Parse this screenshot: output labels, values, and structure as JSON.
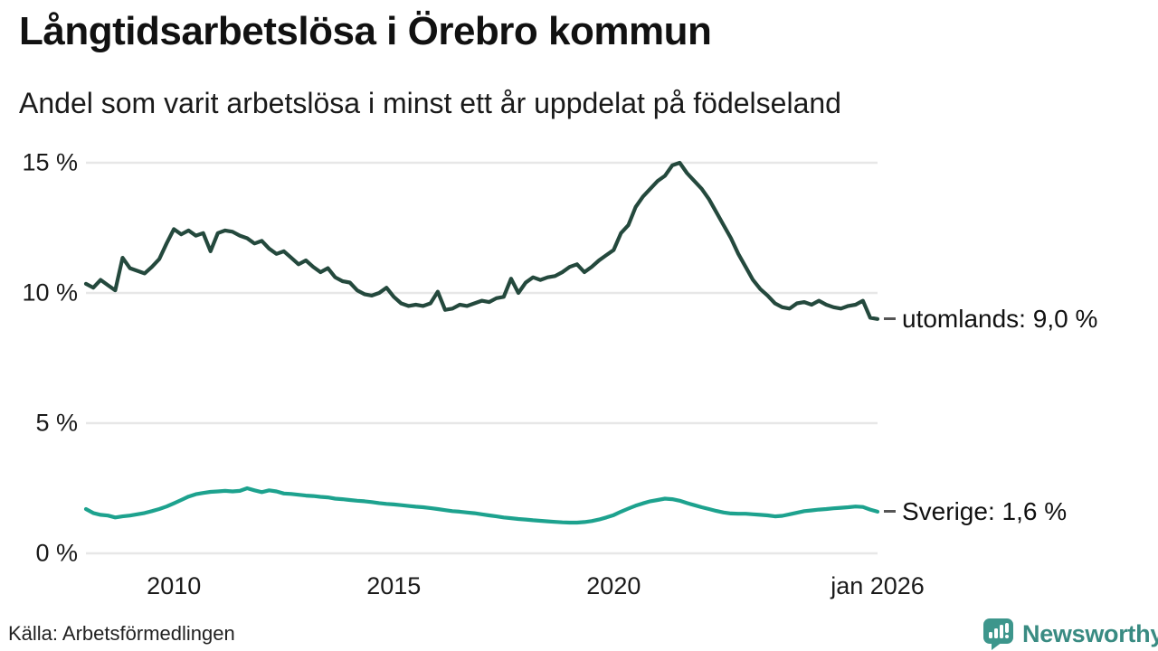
{
  "header": {
    "title": "Långtidsarbetslösa i Örebro kommun",
    "subtitle": "Andel som varit arbetslösa i minst ett år uppdelat på födelseland"
  },
  "footer": {
    "source": "Källa: Arbetsförmedlingen",
    "brand": "Newsworthy"
  },
  "colors": {
    "utomlands_line": "#24493d",
    "sverige_line": "#1da28e",
    "gridline": "#e7e7e7",
    "text": "#1a1a1a",
    "brand_teal": "#398b82",
    "label_dash": "#555555"
  },
  "chart_data": {
    "type": "line",
    "title": "Långtidsarbetslösa i Örebro kommun",
    "subtitle": "Andel som varit arbetslösa i minst ett år uppdelat på födelseland",
    "unit": "%",
    "grid": "horizontal",
    "legend_position": "line-end-labels",
    "x_start": 2008,
    "x_end": 2026,
    "points_per_year": 6,
    "ylim": [
      0,
      15.3
    ],
    "y_ticks": [
      {
        "value": 0,
        "label": "0 %"
      },
      {
        "value": 5,
        "label": "5 %"
      },
      {
        "value": 10,
        "label": "10 %"
      },
      {
        "value": 15,
        "label": "15 %"
      }
    ],
    "x_ticks": [
      {
        "value": 2010,
        "label": "2010"
      },
      {
        "value": 2015,
        "label": "2015"
      },
      {
        "value": 2020,
        "label": "2020"
      },
      {
        "value": 2026,
        "label": "jan 2026"
      }
    ],
    "series": [
      {
        "name": "utomlands",
        "label": "utomlands: 9,0 %",
        "end_value": 9.0,
        "color": "#24493d",
        "values": [
          10.35,
          10.2,
          10.5,
          10.3,
          10.1,
          11.35,
          10.95,
          10.85,
          10.75,
          11.0,
          11.3,
          11.9,
          12.45,
          12.25,
          12.4,
          12.2,
          12.3,
          11.6,
          12.3,
          12.4,
          12.35,
          12.2,
          12.1,
          11.9,
          12.0,
          11.7,
          11.5,
          11.6,
          11.35,
          11.1,
          11.25,
          11.0,
          10.8,
          10.95,
          10.6,
          10.45,
          10.4,
          10.1,
          9.95,
          9.9,
          10.0,
          10.2,
          9.85,
          9.6,
          9.5,
          9.55,
          9.5,
          9.6,
          10.05,
          9.35,
          9.4,
          9.55,
          9.5,
          9.6,
          9.7,
          9.65,
          9.8,
          9.85,
          10.55,
          10.0,
          10.4,
          10.6,
          10.5,
          10.6,
          10.65,
          10.8,
          11.0,
          11.1,
          10.8,
          11.0,
          11.25,
          11.45,
          11.65,
          12.3,
          12.6,
          13.3,
          13.7,
          14.0,
          14.3,
          14.5,
          14.9,
          15.0,
          14.6,
          14.3,
          14.0,
          13.6,
          13.1,
          12.6,
          12.1,
          11.5,
          11.0,
          10.5,
          10.15,
          9.9,
          9.6,
          9.45,
          9.4,
          9.6,
          9.65,
          9.55,
          9.7,
          9.55,
          9.45,
          9.4,
          9.5,
          9.55,
          9.7,
          9.05,
          9.0
        ]
      },
      {
        "name": "Sverige",
        "label": "Sverige: 1,6 %",
        "end_value": 1.6,
        "color": "#1da28e",
        "values": [
          1.7,
          1.55,
          1.48,
          1.45,
          1.38,
          1.42,
          1.45,
          1.5,
          1.55,
          1.62,
          1.7,
          1.8,
          1.92,
          2.05,
          2.18,
          2.27,
          2.32,
          2.36,
          2.38,
          2.4,
          2.38,
          2.4,
          2.5,
          2.42,
          2.35,
          2.42,
          2.38,
          2.3,
          2.28,
          2.25,
          2.22,
          2.2,
          2.17,
          2.15,
          2.1,
          2.08,
          2.05,
          2.02,
          2.0,
          1.97,
          1.93,
          1.9,
          1.88,
          1.85,
          1.82,
          1.79,
          1.77,
          1.74,
          1.7,
          1.66,
          1.62,
          1.6,
          1.57,
          1.54,
          1.5,
          1.46,
          1.42,
          1.38,
          1.35,
          1.32,
          1.3,
          1.27,
          1.25,
          1.23,
          1.21,
          1.19,
          1.18,
          1.18,
          1.2,
          1.24,
          1.3,
          1.38,
          1.47,
          1.6,
          1.72,
          1.83,
          1.92,
          2.0,
          2.05,
          2.1,
          2.08,
          2.02,
          1.93,
          1.85,
          1.77,
          1.7,
          1.63,
          1.57,
          1.53,
          1.52,
          1.52,
          1.5,
          1.48,
          1.46,
          1.42,
          1.44,
          1.5,
          1.56,
          1.62,
          1.65,
          1.68,
          1.7,
          1.73,
          1.75,
          1.77,
          1.8,
          1.78,
          1.68,
          1.6
        ]
      }
    ]
  }
}
